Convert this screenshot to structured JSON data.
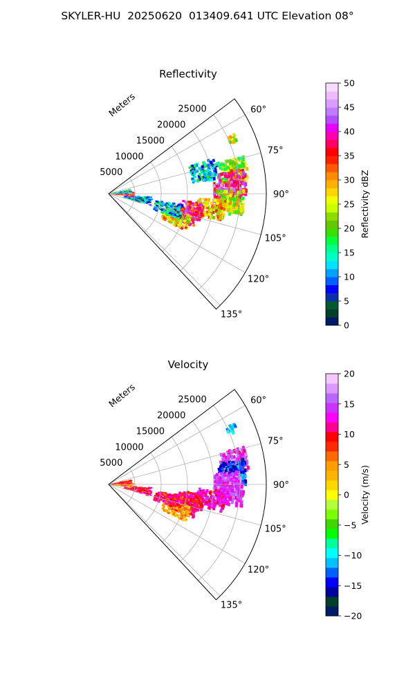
{
  "figure_title": "SKYLER-HU  20250620  013409.641 UTC Elevation 08°",
  "chart_data": [
    {
      "type": "heatmap",
      "projection": "polar-sector",
      "title": "Reflectivity",
      "range_label": "Meters",
      "theta_range_deg": [
        53,
        137
      ],
      "theta_ticks": [
        "60°",
        "75°",
        "90°",
        "105°",
        "120°",
        "135°"
      ],
      "range_ticks": [
        "5000",
        "10000",
        "15000",
        "20000",
        "25000"
      ],
      "rlim": [
        0,
        30000
      ],
      "grid": true,
      "colorbar": {
        "label": "Reflectivity dBZ",
        "vmin": 0,
        "vmax": 50,
        "ticks": [
          "0",
          "5",
          "10",
          "15",
          "20",
          "25",
          "30",
          "35",
          "40",
          "45",
          "50"
        ],
        "colormap": "NWSRef"
      },
      "echoes": [
        {
          "az": 66,
          "r": 25500,
          "dbz": 25
        },
        {
          "az": 77,
          "r": 18500,
          "dbz": 12
        },
        {
          "az": 80,
          "r": 24000,
          "dbz": 22
        },
        {
          "az": 85,
          "r": 23500,
          "dbz": 38
        },
        {
          "az": 90,
          "r": 22500,
          "dbz": 40
        },
        {
          "az": 94,
          "r": 23000,
          "dbz": 24
        },
        {
          "az": 98,
          "r": 19500,
          "dbz": 28
        },
        {
          "az": 101,
          "r": 15500,
          "dbz": 37
        },
        {
          "az": 106,
          "r": 14500,
          "dbz": 36
        },
        {
          "az": 110,
          "r": 13500,
          "dbz": 28
        },
        {
          "az": 104,
          "r": 11500,
          "dbz": 12
        },
        {
          "az": 100,
          "r": 5500,
          "dbz": 10
        },
        {
          "az": 92,
          "r": 2000,
          "dbz": 36
        },
        {
          "az": 84,
          "r": 1500,
          "dbz": 14
        }
      ]
    },
    {
      "type": "heatmap",
      "projection": "polar-sector",
      "title": "Velocity",
      "range_label": "Meters",
      "theta_range_deg": [
        53,
        137
      ],
      "theta_ticks": [
        "60°",
        "75°",
        "90°",
        "105°",
        "120°",
        "135°"
      ],
      "range_ticks": [
        "5000",
        "10000",
        "15000",
        "20000",
        "25000"
      ],
      "rlim": [
        0,
        30000
      ],
      "grid": true,
      "colorbar": {
        "label": "Velocity (m/s)",
        "vmin": -20,
        "vmax": 20,
        "ticks": [
          "−20",
          "−15",
          "−10",
          "−5",
          "0",
          "5",
          "10",
          "15",
          "20"
        ],
        "colormap": "NWSVel"
      },
      "echoes": [
        {
          "az": 66,
          "r": 25500,
          "vel": -11
        },
        {
          "az": 80,
          "r": 24000,
          "vel": 14
        },
        {
          "az": 85,
          "r": 23500,
          "vel": -14
        },
        {
          "az": 90,
          "r": 22500,
          "vel": 15
        },
        {
          "az": 94,
          "r": 23000,
          "vel": 14
        },
        {
          "az": 98,
          "r": 19500,
          "vel": 12
        },
        {
          "az": 101,
          "r": 15500,
          "vel": 10
        },
        {
          "az": 106,
          "r": 14500,
          "vel": 10
        },
        {
          "az": 110,
          "r": 13500,
          "vel": 4
        },
        {
          "az": 104,
          "r": 11500,
          "vel": 10
        },
        {
          "az": 100,
          "r": 5500,
          "vel": 10
        },
        {
          "az": 92,
          "r": 2000,
          "vel": 5
        },
        {
          "az": 84,
          "r": 1500,
          "vel": 9
        }
      ]
    }
  ]
}
